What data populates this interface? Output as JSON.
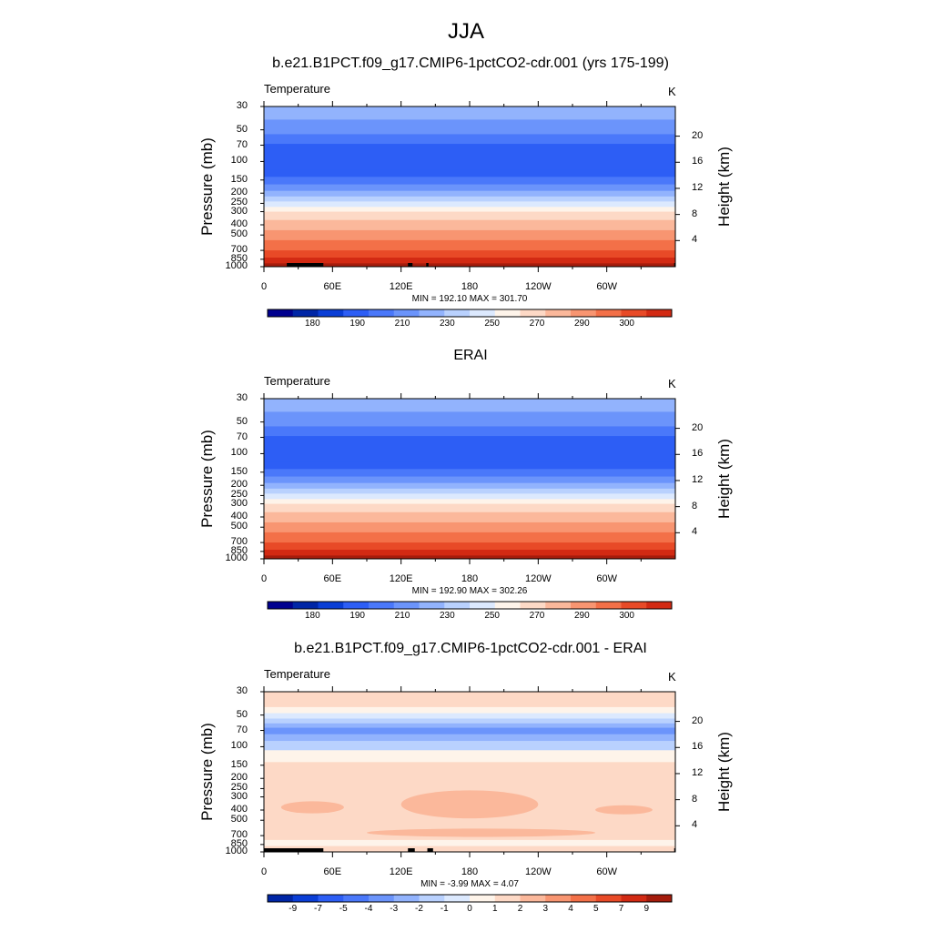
{
  "title": "JJA",
  "colors": {
    "ramp": [
      "#00008f",
      "#0026a6",
      "#0a3ed6",
      "#2d5ef5",
      "#4a78fa",
      "#6b94fb",
      "#92b3fd",
      "#b9d1fe",
      "#dce9fe",
      "#fef4ea",
      "#fdd9c6",
      "#fbb89b",
      "#f89571",
      "#f37048",
      "#e84a27",
      "#d22a13",
      "#a51c0c",
      "#7a0e06"
    ],
    "terrain": "#000000"
  },
  "chart_data": [
    {
      "type": "heatmap",
      "title": "b.e21.B1PCT.f09_g17.CMIP6-1pctCO2-cdr.001 (yrs 175-199)",
      "variable": "Temperature",
      "units": "K",
      "ylabel": "Pressure (mb)",
      "ylabel_right": "Height (km)",
      "pressure_ticks": [
        30,
        50,
        70,
        100,
        150,
        200,
        250,
        300,
        400,
        500,
        700,
        850,
        1000
      ],
      "height_ticks": [
        4,
        8,
        12,
        16,
        20
      ],
      "lon_ticks": [
        "0",
        "60E",
        "120E",
        "180",
        "120W",
        "60W"
      ],
      "min_label": "MIN = 192.10",
      "max_label": "MAX = 301.70",
      "colorbar_labels": [
        "180",
        "190",
        "210",
        "230",
        "250",
        "270",
        "290",
        "300"
      ],
      "terrain_lon": [
        [
          20,
          52
        ],
        [
          126,
          130
        ],
        [
          142,
          144
        ],
        [
          359,
          386
        ]
      ],
      "bands": [
        {
          "p": 30,
          "idx": 6
        },
        {
          "p": 40,
          "idx": 5
        },
        {
          "p": 55,
          "idx": 4
        },
        {
          "p": 68,
          "idx": 3
        },
        {
          "p": 120,
          "idx": 3
        },
        {
          "p": 140,
          "idx": 4
        },
        {
          "p": 165,
          "idx": 5
        },
        {
          "p": 190,
          "idx": 6
        },
        {
          "p": 215,
          "idx": 7
        },
        {
          "p": 240,
          "idx": 8
        },
        {
          "p": 270,
          "idx": 9
        },
        {
          "p": 300,
          "idx": 10
        },
        {
          "p": 360,
          "idx": 11
        },
        {
          "p": 450,
          "idx": 12
        },
        {
          "p": 560,
          "idx": 13
        },
        {
          "p": 700,
          "idx": 14
        },
        {
          "p": 820,
          "idx": 15
        },
        {
          "p": 930,
          "idx": 16
        }
      ]
    },
    {
      "type": "heatmap",
      "title": "ERAI",
      "variable": "Temperature",
      "units": "K",
      "ylabel": "Pressure (mb)",
      "ylabel_right": "Height (km)",
      "pressure_ticks": [
        30,
        50,
        70,
        100,
        150,
        200,
        250,
        300,
        400,
        500,
        700,
        850,
        1000
      ],
      "height_ticks": [
        4,
        8,
        12,
        16,
        20
      ],
      "lon_ticks": [
        "0",
        "60E",
        "120E",
        "180",
        "120W",
        "60W"
      ],
      "min_label": "MIN = 192.90",
      "max_label": "MAX = 302.26",
      "colorbar_labels": [
        "180",
        "190",
        "210",
        "230",
        "250",
        "270",
        "290",
        "300"
      ],
      "terrain_lon": [],
      "bands": [
        {
          "p": 30,
          "idx": 6
        },
        {
          "p": 40,
          "idx": 5
        },
        {
          "p": 55,
          "idx": 4
        },
        {
          "p": 68,
          "idx": 3
        },
        {
          "p": 120,
          "idx": 3
        },
        {
          "p": 140,
          "idx": 4
        },
        {
          "p": 165,
          "idx": 5
        },
        {
          "p": 190,
          "idx": 6
        },
        {
          "p": 215,
          "idx": 7
        },
        {
          "p": 240,
          "idx": 8
        },
        {
          "p": 270,
          "idx": 9
        },
        {
          "p": 300,
          "idx": 10
        },
        {
          "p": 360,
          "idx": 11
        },
        {
          "p": 450,
          "idx": 12
        },
        {
          "p": 560,
          "idx": 13
        },
        {
          "p": 700,
          "idx": 14
        },
        {
          "p": 820,
          "idx": 15
        },
        {
          "p": 930,
          "idx": 16
        }
      ]
    },
    {
      "type": "heatmap",
      "title": "b.e21.B1PCT.f09_g17.CMIP6-1pctCO2-cdr.001 - ERAI",
      "variable": "Temperature",
      "units": "K",
      "ylabel": "Pressure (mb)",
      "ylabel_right": "Height (km)",
      "pressure_ticks": [
        30,
        50,
        70,
        100,
        150,
        200,
        250,
        300,
        400,
        500,
        700,
        850,
        1000
      ],
      "height_ticks": [
        4,
        8,
        12,
        16,
        20
      ],
      "lon_ticks": [
        "0",
        "60E",
        "120E",
        "180",
        "120W",
        "60W"
      ],
      "min_label": "MIN = -3.99",
      "max_label": "MAX = 4.07",
      "colorbar_labels": [
        "-9",
        "-7",
        "-5",
        "-4",
        "-3",
        "-2",
        "-1",
        "0",
        "1",
        "2",
        "3",
        "4",
        "5",
        "7",
        "9"
      ],
      "terrain_lon": [
        [
          0,
          52
        ],
        [
          126,
          132
        ],
        [
          143,
          148
        ],
        [
          359,
          386
        ]
      ],
      "bands": [
        {
          "p": 30,
          "idx": 10
        },
        {
          "p": 42,
          "idx": 9
        },
        {
          "p": 48,
          "idx": 8
        },
        {
          "p": 54,
          "idx": 7
        },
        {
          "p": 60,
          "idx": 6
        },
        {
          "p": 66,
          "idx": 5
        },
        {
          "p": 76,
          "idx": 6
        },
        {
          "p": 88,
          "idx": 7
        },
        {
          "p": 108,
          "idx": 9
        },
        {
          "p": 140,
          "idx": 10
        },
        {
          "p": 770,
          "idx": 9
        },
        {
          "p": 880,
          "idx": 10
        }
      ],
      "blobs": [
        {
          "lon": [
            15,
            70
          ],
          "p": [
            330,
            430
          ],
          "idx": 11
        },
        {
          "lon": [
            120,
            240
          ],
          "p": [
            260,
            480
          ],
          "idx": 11
        },
        {
          "lon": [
            290,
            340
          ],
          "p": [
            360,
            440
          ],
          "idx": 11
        },
        {
          "lon": [
            90,
            290
          ],
          "p": [
            600,
            720
          ],
          "idx": 11
        }
      ]
    }
  ]
}
